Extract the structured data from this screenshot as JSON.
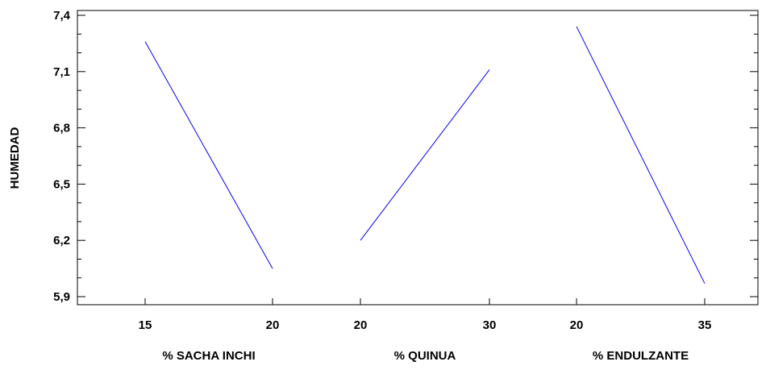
{
  "chart_data": {
    "type": "line",
    "title": "",
    "ylabel": "HUMEDAD",
    "ylim": [
      5.9,
      7.4
    ],
    "yticks": [
      "5,9",
      "6,2",
      "6,5",
      "6,8",
      "7,1",
      "7,4"
    ],
    "grid": false,
    "line_color": "#0000ff",
    "factors": [
      {
        "xlabel": "% SACHA INCHI",
        "x": [
          "15",
          "20"
        ],
        "values": [
          7.26,
          6.05
        ]
      },
      {
        "xlabel": "% QUINUA",
        "x": [
          "20",
          "30"
        ],
        "values": [
          6.2,
          7.11
        ]
      },
      {
        "xlabel": "% ENDULZANTE",
        "x": [
          "20",
          "35"
        ],
        "values": [
          7.34,
          5.97
        ]
      }
    ]
  }
}
